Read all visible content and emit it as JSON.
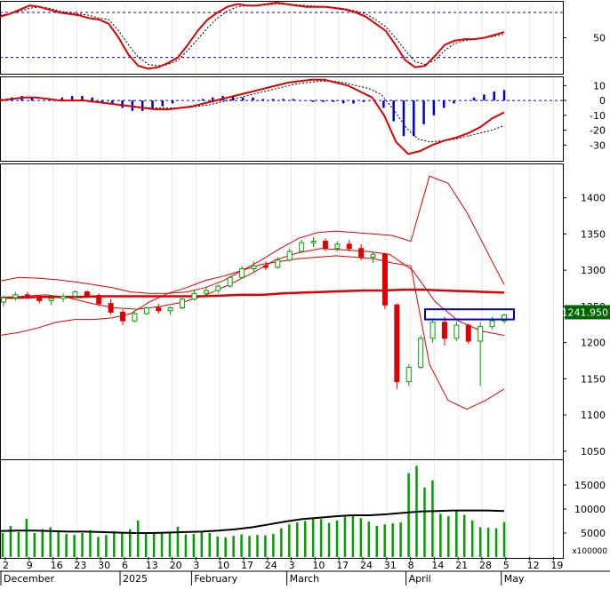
{
  "colors": {
    "up": "#00a000",
    "down": "#e00000",
    "red_line": "#e00000",
    "blue": "#0000cc",
    "black": "#000000",
    "volume": "#00a000",
    "badge_bg": "#006600",
    "badge_text": "#ffffff"
  },
  "last_price_label": "1241.950",
  "x_axis": {
    "day_labels": [
      "2",
      "9",
      "16",
      "23",
      "30",
      "6",
      "13",
      "20",
      "3",
      "10",
      "17",
      "24",
      "3",
      "10",
      "17",
      "24",
      "31",
      "8",
      "14",
      "21",
      "28",
      "5",
      "12",
      "19"
    ],
    "month_labels": [
      "December",
      "2025",
      "February",
      "March",
      "April",
      "May"
    ]
  },
  "chart_data": [
    {
      "type": "line",
      "panel": "oscillator",
      "y_ticks": [
        50
      ],
      "ylim": [
        0,
        100
      ],
      "reference_lines": [
        86,
        22
      ],
      "series": [
        {
          "values": [
            80,
            84,
            90,
            96,
            94,
            90,
            86,
            84,
            82,
            78,
            76,
            70,
            50,
            26,
            10,
            6,
            8,
            14,
            22,
            40,
            60,
            76,
            86,
            94,
            98,
            96,
            96,
            98,
            100,
            98,
            96,
            94,
            94,
            94,
            92,
            90,
            86,
            80,
            70,
            60,
            40,
            18,
            8,
            10,
            24,
            40,
            46,
            48,
            48,
            50,
            54,
            58
          ]
        },
        {
          "values": [
            82,
            84,
            88,
            92,
            94,
            92,
            88,
            86,
            84,
            82,
            78,
            76,
            60,
            40,
            22,
            12,
            10,
            12,
            18,
            32,
            48,
            64,
            78,
            88,
            94,
            96,
            96,
            97,
            98,
            98,
            97,
            96,
            95,
            94,
            93,
            91,
            88,
            84,
            76,
            66,
            50,
            32,
            16,
            12,
            18,
            32,
            42,
            46,
            48,
            50,
            52,
            55
          ]
        }
      ]
    },
    {
      "type": "bar",
      "panel": "macd",
      "y_ticks": [
        10,
        0,
        -10,
        -20,
        -30
      ],
      "ylim": [
        -40,
        15
      ],
      "series": [
        {
          "values": [
            1,
            2,
            3,
            2,
            0,
            0,
            2,
            3,
            3,
            2,
            -1,
            -2,
            -5,
            -7,
            -7,
            -6,
            -4,
            -2,
            0,
            0,
            1,
            2,
            3,
            3,
            2,
            2,
            1,
            1,
            1,
            1,
            0,
            -1,
            -1,
            -1,
            -2,
            -2,
            -1,
            0,
            -5,
            -14,
            -24,
            -24,
            -16,
            -10,
            -5,
            -2,
            0,
            2,
            4,
            6,
            7
          ]
        },
        {
          "values": [
            0,
            1,
            2,
            2,
            1,
            0,
            0,
            0,
            -1,
            -2,
            -3,
            -4,
            -5,
            -6,
            -6,
            -5,
            -4,
            -2,
            0,
            2,
            4,
            6,
            8,
            10,
            12,
            13,
            14,
            14,
            12,
            10,
            6,
            2,
            -10,
            -28,
            -36,
            -34,
            -30,
            -27,
            -25,
            -22,
            -18,
            -12,
            -8
          ]
        },
        {
          "values": [
            0,
            1,
            2,
            2,
            1,
            0,
            0,
            0,
            -1,
            -2,
            -3,
            -4,
            -5,
            -5,
            -5,
            -5,
            -4,
            -3,
            -1,
            1,
            3,
            5,
            7,
            9,
            11,
            12,
            13,
            13,
            12,
            10,
            8,
            4,
            -6,
            -18,
            -26,
            -28,
            -27,
            -26,
            -24,
            -22,
            -20,
            -17
          ]
        }
      ]
    },
    {
      "type": "candlestick",
      "panel": "price",
      "y_ticks": [
        1400,
        1350,
        1300,
        1250,
        1200,
        1150,
        1100,
        1050
      ],
      "ylim": [
        1040,
        1445
      ],
      "candles": [
        [
          1256,
          1265,
          1250,
          1262
        ],
        [
          1262,
          1270,
          1258,
          1266
        ],
        [
          1266,
          1270,
          1260,
          1262
        ],
        [
          1262,
          1266,
          1254,
          1258
        ],
        [
          1258,
          1265,
          1252,
          1261
        ],
        [
          1261,
          1268,
          1256,
          1264
        ],
        [
          1264,
          1272,
          1262,
          1270
        ],
        [
          1270,
          1272,
          1262,
          1265
        ],
        [
          1265,
          1268,
          1250,
          1254
        ],
        [
          1254,
          1260,
          1238,
          1242
        ],
        [
          1242,
          1246,
          1224,
          1230
        ],
        [
          1230,
          1244,
          1228,
          1240
        ],
        [
          1240,
          1250,
          1238,
          1248
        ],
        [
          1248,
          1254,
          1240,
          1244
        ],
        [
          1244,
          1250,
          1238,
          1248
        ],
        [
          1248,
          1262,
          1246,
          1260
        ],
        [
          1260,
          1272,
          1258,
          1268
        ],
        [
          1268,
          1276,
          1264,
          1272
        ],
        [
          1272,
          1280,
          1268,
          1278
        ],
        [
          1278,
          1292,
          1276,
          1290
        ],
        [
          1290,
          1306,
          1288,
          1302
        ],
        [
          1302,
          1312,
          1296,
          1306
        ],
        [
          1306,
          1312,
          1300,
          1304
        ],
        [
          1304,
          1318,
          1302,
          1314
        ],
        [
          1314,
          1330,
          1312,
          1326
        ],
        [
          1326,
          1342,
          1324,
          1338
        ],
        [
          1338,
          1346,
          1332,
          1340
        ],
        [
          1340,
          1344,
          1326,
          1330
        ],
        [
          1330,
          1340,
          1326,
          1336
        ],
        [
          1336,
          1342,
          1326,
          1330
        ],
        [
          1330,
          1336,
          1314,
          1318
        ],
        [
          1318,
          1326,
          1310,
          1322
        ],
        [
          1322,
          1324,
          1246,
          1252
        ],
        [
          1252,
          1254,
          1136,
          1146
        ],
        [
          1146,
          1170,
          1140,
          1166
        ],
        [
          1166,
          1210,
          1164,
          1206
        ],
        [
          1206,
          1232,
          1200,
          1228
        ],
        [
          1228,
          1236,
          1196,
          1206
        ],
        [
          1206,
          1230,
          1202,
          1224
        ],
        [
          1224,
          1226,
          1198,
          1202
        ],
        [
          1202,
          1228,
          1140,
          1222
        ],
        [
          1222,
          1236,
          1218,
          1230
        ],
        [
          1230,
          1240,
          1226,
          1238
        ]
      ],
      "series": [
        {
          "values": [
            1262,
            1262,
            1263,
            1263,
            1263,
            1264,
            1264,
            1264,
            1264,
            1264,
            1264,
            1265,
            1266,
            1266,
            1268,
            1269,
            1270,
            1271,
            1272,
            1272,
            1273,
            1273,
            1272,
            1271,
            1270,
            1269
          ]
        },
        {
          "values": [
            1285,
            1290,
            1289,
            1287,
            1284,
            1280,
            1276,
            1270,
            1268,
            1268,
            1270,
            1276,
            1286,
            1300,
            1314,
            1330,
            1344,
            1352,
            1354,
            1352,
            1350,
            1348,
            1340,
            1430,
            1420,
            1380,
            1330,
            1280
          ]
        },
        {
          "values": [
            1210,
            1214,
            1220,
            1228,
            1232,
            1232,
            1234,
            1240,
            1256,
            1268,
            1276,
            1286,
            1292,
            1300,
            1308,
            1312,
            1316,
            1318,
            1320,
            1318,
            1316,
            1310,
            1306,
            1170,
            1120,
            1108,
            1120,
            1136
          ]
        },
        {
          "values": [
            1262,
            1264,
            1266,
            1262,
            1254,
            1248,
            1246,
            1250,
            1256,
            1266,
            1280,
            1296,
            1314,
            1324,
            1330,
            1328,
            1326,
            1322,
            1300,
            1256,
            1230,
            1216,
            1210
          ]
        }
      ],
      "box": {
        "top": 1246,
        "bottom": 1232
      }
    },
    {
      "type": "bar",
      "panel": "volume",
      "y_ticks": [
        15000,
        10000,
        5000
      ],
      "y_unit_label": "x100000",
      "ylim": [
        0,
        20000
      ],
      "values": [
        5000,
        6500,
        5200,
        8000,
        5000,
        5800,
        6200,
        5400,
        4800,
        4600,
        5000,
        5600,
        4200,
        4600,
        5400,
        5200,
        5800,
        7600,
        5000,
        4900,
        5100,
        5300,
        6300,
        4700,
        4800,
        5200,
        5000,
        4300,
        4100,
        4400,
        4700,
        4400,
        4600,
        4500,
        4800,
        6000,
        6800,
        7200,
        7500,
        8200,
        7900,
        7100,
        7600,
        8400,
        8800,
        8100,
        7400,
        6500,
        6800,
        7000,
        7200,
        17500,
        19000,
        14500,
        16000,
        9000,
        8500,
        9600,
        8800,
        7600,
        6200,
        6100,
        6000,
        7300
      ],
      "series": [
        {
          "values": [
            5400,
            5500,
            5500,
            5400,
            5300,
            5300,
            5200,
            5100,
            5000,
            5000,
            5100,
            5200,
            5300,
            5500,
            5800,
            6200,
            6800,
            7400,
            7900,
            8200,
            8500,
            8700,
            8700,
            8900,
            9200,
            9500,
            9600,
            9700,
            9700,
            9700,
            9600
          ]
        }
      ]
    }
  ]
}
